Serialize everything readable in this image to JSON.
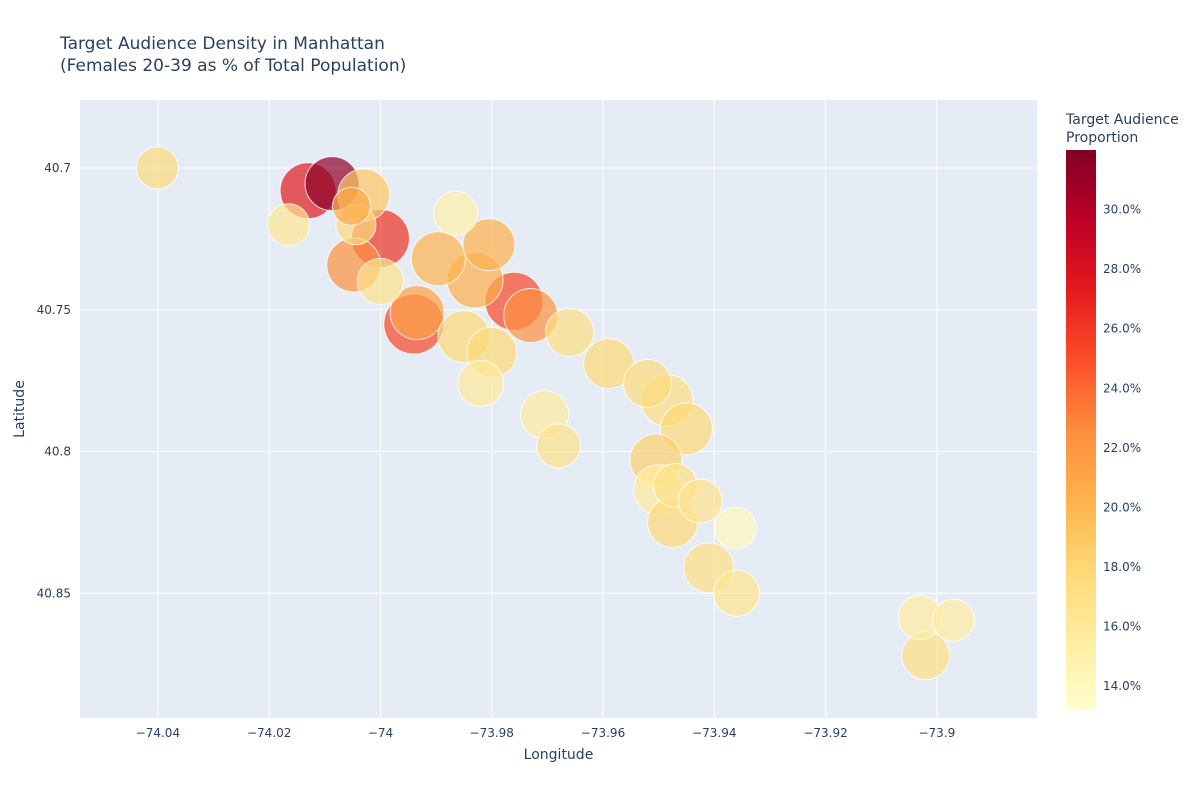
{
  "chart_data": {
    "type": "scatter",
    "title": "Target Audience Density in Manhattan",
    "subtitle": "(Females 20-39 as % of Total Population)",
    "xlabel": "Longitude",
    "ylabel": "Latitude",
    "xlim": [
      -74.054,
      -73.882
    ],
    "ylim": [
      40.676,
      40.894
    ],
    "y_reversed": true,
    "x_ticks": [
      -74.04,
      -74.02,
      -74,
      -73.98,
      -73.96,
      -73.94,
      -73.92,
      -73.9
    ],
    "x_tick_labels": [
      "−74.04",
      "−74.02",
      "−74",
      "−73.98",
      "−73.96",
      "−73.94",
      "−73.92",
      "−73.9"
    ],
    "y_ticks": [
      40.7,
      40.75,
      40.8,
      40.85
    ],
    "y_tick_labels": [
      "40.7",
      "40.75",
      "40.8",
      "40.85"
    ],
    "colorbar": {
      "title_lines": [
        "Target Audience",
        "Proportion"
      ],
      "range": [
        13.2,
        32.0
      ],
      "ticks": [
        14,
        16,
        18,
        20,
        22,
        24,
        26,
        28,
        30
      ],
      "tick_labels": [
        "14.0%",
        "16.0%",
        "18.0%",
        "20.0%",
        "22.0%",
        "24.0%",
        "26.0%",
        "28.0%",
        "30.0%"
      ],
      "colorscale": [
        "#ffffcc",
        "#ffeda0",
        "#fed976",
        "#feb24c",
        "#fd8d3c",
        "#fc4e2a",
        "#e31a1c",
        "#bd0026",
        "#800026"
      ]
    },
    "marker_opacity": 0.7,
    "marker_line_color": "#ffffff",
    "grid": true,
    "plot_bgcolor": "#e5ecf6",
    "points": [
      {
        "x": -74.0401,
        "y": 40.7,
        "v": 17.5,
        "s": 21
      },
      {
        "x": -74.0165,
        "y": 40.72,
        "v": 16.3,
        "s": 21
      },
      {
        "x": -74.0087,
        "y": 40.7055,
        "v": 31.5,
        "s": 27
      },
      {
        "x": -74.013,
        "y": 40.708,
        "v": 27.3,
        "s": 28
      },
      {
        "x": -74.0052,
        "y": 40.7135,
        "v": 21.0,
        "s": 19
      },
      {
        "x": -74.0044,
        "y": 40.72,
        "v": 17.5,
        "s": 20
      },
      {
        "x": -74.003,
        "y": 40.7095,
        "v": 19.0,
        "s": 26
      },
      {
        "x": -74.0,
        "y": 40.7248,
        "v": 26.2,
        "s": 29
      },
      {
        "x": -74.0,
        "y": 40.74,
        "v": 16.8,
        "s": 23
      },
      {
        "x": -74.0048,
        "y": 40.7342,
        "v": 22.3,
        "s": 27
      },
      {
        "x": -73.9934,
        "y": 40.751,
        "v": 21.2,
        "s": 27
      },
      {
        "x": -73.994,
        "y": 40.755,
        "v": 25.3,
        "s": 30
      },
      {
        "x": -73.9865,
        "y": 40.716,
        "v": 15.0,
        "s": 22
      },
      {
        "x": -73.9896,
        "y": 40.732,
        "v": 20.2,
        "s": 27
      },
      {
        "x": -73.9805,
        "y": 40.727,
        "v": 20.3,
        "s": 26
      },
      {
        "x": -73.983,
        "y": 40.7395,
        "v": 20.5,
        "s": 28
      },
      {
        "x": -73.976,
        "y": 40.747,
        "v": 25.3,
        "s": 29
      },
      {
        "x": -73.973,
        "y": 40.752,
        "v": 22.3,
        "s": 27
      },
      {
        "x": -73.966,
        "y": 40.758,
        "v": 17.3,
        "s": 24
      },
      {
        "x": -73.985,
        "y": 40.7595,
        "v": 17.8,
        "s": 26
      },
      {
        "x": -73.98,
        "y": 40.765,
        "v": 17.9,
        "s": 25
      },
      {
        "x": -73.982,
        "y": 40.776,
        "v": 16.0,
        "s": 23
      },
      {
        "x": -73.959,
        "y": 40.769,
        "v": 17.8,
        "s": 25
      },
      {
        "x": -73.9705,
        "y": 40.787,
        "v": 15.7,
        "s": 24
      },
      {
        "x": -73.968,
        "y": 40.798,
        "v": 16.8,
        "s": 22
      },
      {
        "x": -73.952,
        "y": 40.776,
        "v": 17.6,
        "s": 24
      },
      {
        "x": -73.9485,
        "y": 40.782,
        "v": 17.3,
        "s": 26
      },
      {
        "x": -73.945,
        "y": 40.792,
        "v": 17.9,
        "s": 26
      },
      {
        "x": -73.9505,
        "y": 40.803,
        "v": 18.3,
        "s": 26
      },
      {
        "x": -73.947,
        "y": 40.812,
        "v": 17.0,
        "s": 22
      },
      {
        "x": -73.95,
        "y": 40.8135,
        "v": 15.7,
        "s": 25
      },
      {
        "x": -73.9425,
        "y": 40.8175,
        "v": 16.7,
        "s": 22
      },
      {
        "x": -73.9475,
        "y": 40.825,
        "v": 17.9,
        "s": 25
      },
      {
        "x": -73.9362,
        "y": 40.827,
        "v": 14.0,
        "s": 21
      },
      {
        "x": -73.941,
        "y": 40.841,
        "v": 17.2,
        "s": 25
      },
      {
        "x": -73.936,
        "y": 40.85,
        "v": 16.5,
        "s": 23
      },
      {
        "x": -73.903,
        "y": 40.8585,
        "v": 15.5,
        "s": 22
      },
      {
        "x": -73.897,
        "y": 40.8595,
        "v": 15.5,
        "s": 21
      },
      {
        "x": -73.902,
        "y": 40.872,
        "v": 17.1,
        "s": 24
      }
    ]
  }
}
